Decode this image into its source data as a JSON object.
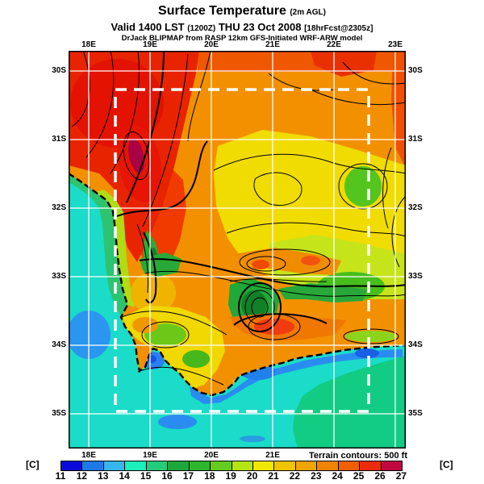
{
  "header": {
    "title": "Surface Temperature",
    "title_note": "(2m AGL)",
    "valid_main1": "Valid 1400 LST",
    "valid_note1": "(1200Z)",
    "valid_main2": "THU 23 Oct 2008",
    "valid_note2": "[18hrFcst@2305z]",
    "model_line": "DrJack BLIPMAP from RASP 12km GFS-Initiated WRF-ARW model"
  },
  "map": {
    "top_axis": [
      "18E",
      "19E",
      "20E",
      "21E",
      "22E",
      "23E"
    ],
    "bottom_axis": [
      "18E",
      "19E",
      "20E",
      "21E"
    ],
    "left_axis": [
      "30S",
      "31S",
      "32S",
      "33S",
      "34S",
      "35S"
    ],
    "right_axis": [
      "30S",
      "31S",
      "32S",
      "33S",
      "34S",
      "35S"
    ],
    "terrain_note": "Terrain contours: 500 ft"
  },
  "colorbar": {
    "unit_left": "[C]",
    "unit_right": "[C]",
    "ticks": [
      "11",
      "12",
      "13",
      "14",
      "15",
      "16",
      "17",
      "18",
      "19",
      "20",
      "21",
      "22",
      "23",
      "24",
      "25",
      "26",
      "27"
    ],
    "colors": [
      "#0A0AD8",
      "#1E7AE8",
      "#36B6EE",
      "#1CEEBC",
      "#22CC7A",
      "#1EA83C",
      "#2EB62E",
      "#64CC1E",
      "#B4E414",
      "#F0E800",
      "#F0C400",
      "#F0A400",
      "#F08400",
      "#F06000",
      "#EA2C0C",
      "#C00840"
    ]
  }
}
